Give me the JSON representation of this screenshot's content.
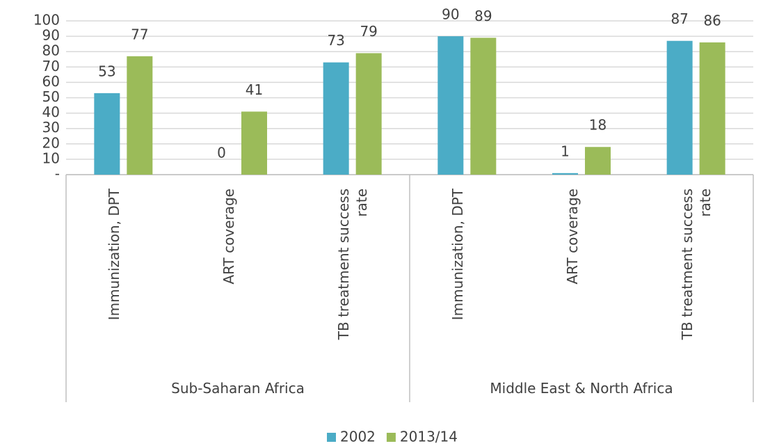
{
  "chart_data": {
    "type": "bar",
    "categories": [
      "Immunization, DPT",
      "ART coverage",
      "TB treatment success rate",
      "Immunization, DPT",
      "ART coverage",
      "TB treatment success rate"
    ],
    "groups": [
      "Sub-Saharan Africa",
      "Middle East & North Africa"
    ],
    "series": [
      {
        "name": "2002",
        "color": "#4bacc6",
        "values": [
          53,
          0,
          73,
          90,
          1,
          87
        ]
      },
      {
        "name": "2013/14",
        "color": "#9bbb59",
        "values": [
          77,
          41,
          79,
          89,
          18,
          86
        ]
      }
    ],
    "ylim": [
      0,
      100
    ],
    "yticks": [
      {
        "value": 0,
        "label": "-"
      },
      10,
      20,
      30,
      40,
      50,
      60,
      70,
      80,
      90,
      100
    ],
    "grid": true,
    "legend": "bottom"
  }
}
